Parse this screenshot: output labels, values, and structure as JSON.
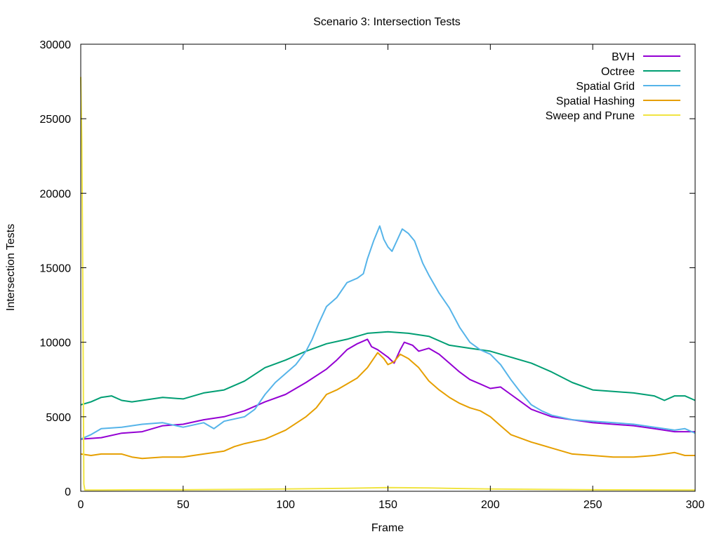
{
  "chart_data": {
    "type": "line",
    "title": "Scenario 3: Intersection Tests",
    "xlabel": "Frame",
    "ylabel": "Intersection Tests",
    "xlim": [
      0,
      300
    ],
    "ylim": [
      0,
      30000
    ],
    "xticks": [
      0,
      50,
      100,
      150,
      200,
      250,
      300
    ],
    "yticks": [
      0,
      5000,
      10000,
      15000,
      20000,
      25000,
      30000
    ],
    "legend_position": "top-right",
    "grid": false,
    "series": [
      {
        "name": "BVH",
        "color": "#9400d3",
        "points": [
          [
            0,
            3500
          ],
          [
            10,
            3600
          ],
          [
            20,
            3900
          ],
          [
            30,
            4000
          ],
          [
            40,
            4400
          ],
          [
            50,
            4500
          ],
          [
            60,
            4800
          ],
          [
            70,
            5000
          ],
          [
            80,
            5400
          ],
          [
            90,
            6000
          ],
          [
            100,
            6500
          ],
          [
            110,
            7300
          ],
          [
            120,
            8200
          ],
          [
            125,
            8800
          ],
          [
            130,
            9500
          ],
          [
            135,
            9900
          ],
          [
            140,
            10200
          ],
          [
            142,
            9700
          ],
          [
            145,
            9500
          ],
          [
            150,
            9000
          ],
          [
            153,
            8600
          ],
          [
            156,
            9500
          ],
          [
            158,
            10000
          ],
          [
            162,
            9800
          ],
          [
            165,
            9400
          ],
          [
            170,
            9600
          ],
          [
            175,
            9200
          ],
          [
            180,
            8600
          ],
          [
            185,
            8000
          ],
          [
            190,
            7500
          ],
          [
            195,
            7200
          ],
          [
            200,
            6900
          ],
          [
            205,
            7000
          ],
          [
            210,
            6500
          ],
          [
            215,
            6000
          ],
          [
            220,
            5500
          ],
          [
            230,
            5000
          ],
          [
            240,
            4800
          ],
          [
            250,
            4600
          ],
          [
            260,
            4500
          ],
          [
            270,
            4400
          ],
          [
            280,
            4200
          ],
          [
            290,
            4000
          ],
          [
            300,
            4000
          ]
        ]
      },
      {
        "name": "Octree",
        "color": "#009e73",
        "points": [
          [
            0,
            5800
          ],
          [
            5,
            6000
          ],
          [
            10,
            6300
          ],
          [
            15,
            6400
          ],
          [
            20,
            6100
          ],
          [
            25,
            6000
          ],
          [
            30,
            6100
          ],
          [
            40,
            6300
          ],
          [
            50,
            6200
          ],
          [
            60,
            6600
          ],
          [
            70,
            6800
          ],
          [
            80,
            7400
          ],
          [
            90,
            8300
          ],
          [
            100,
            8800
          ],
          [
            110,
            9400
          ],
          [
            120,
            9900
          ],
          [
            130,
            10200
          ],
          [
            140,
            10600
          ],
          [
            150,
            10700
          ],
          [
            160,
            10600
          ],
          [
            170,
            10400
          ],
          [
            180,
            9800
          ],
          [
            190,
            9600
          ],
          [
            200,
            9400
          ],
          [
            210,
            9000
          ],
          [
            220,
            8600
          ],
          [
            230,
            8000
          ],
          [
            240,
            7300
          ],
          [
            250,
            6800
          ],
          [
            260,
            6700
          ],
          [
            270,
            6600
          ],
          [
            280,
            6400
          ],
          [
            285,
            6100
          ],
          [
            290,
            6400
          ],
          [
            295,
            6400
          ],
          [
            300,
            6100
          ]
        ]
      },
      {
        "name": "Spatial Grid",
        "color": "#56b4e9",
        "points": [
          [
            0,
            3500
          ],
          [
            5,
            3800
          ],
          [
            10,
            4200
          ],
          [
            20,
            4300
          ],
          [
            30,
            4500
          ],
          [
            40,
            4600
          ],
          [
            50,
            4300
          ],
          [
            60,
            4600
          ],
          [
            65,
            4200
          ],
          [
            70,
            4700
          ],
          [
            80,
            5000
          ],
          [
            85,
            5500
          ],
          [
            90,
            6500
          ],
          [
            95,
            7300
          ],
          [
            100,
            7900
          ],
          [
            105,
            8500
          ],
          [
            110,
            9400
          ],
          [
            113,
            10200
          ],
          [
            116,
            11200
          ],
          [
            120,
            12400
          ],
          [
            125,
            13000
          ],
          [
            130,
            14000
          ],
          [
            135,
            14300
          ],
          [
            138,
            14600
          ],
          [
            140,
            15600
          ],
          [
            143,
            16800
          ],
          [
            146,
            17800
          ],
          [
            148,
            16900
          ],
          [
            150,
            16400
          ],
          [
            152,
            16100
          ],
          [
            155,
            17000
          ],
          [
            157,
            17600
          ],
          [
            160,
            17300
          ],
          [
            163,
            16800
          ],
          [
            167,
            15300
          ],
          [
            170,
            14500
          ],
          [
            175,
            13300
          ],
          [
            180,
            12300
          ],
          [
            185,
            11000
          ],
          [
            190,
            10000
          ],
          [
            195,
            9500
          ],
          [
            200,
            9200
          ],
          [
            205,
            8500
          ],
          [
            210,
            7500
          ],
          [
            215,
            6600
          ],
          [
            220,
            5800
          ],
          [
            225,
            5400
          ],
          [
            230,
            5100
          ],
          [
            240,
            4800
          ],
          [
            250,
            4700
          ],
          [
            260,
            4600
          ],
          [
            270,
            4500
          ],
          [
            280,
            4300
          ],
          [
            290,
            4100
          ],
          [
            295,
            4200
          ],
          [
            300,
            3900
          ]
        ]
      },
      {
        "name": "Spatial Hashing",
        "color": "#e69f00",
        "points": [
          [
            0,
            2500
          ],
          [
            5,
            2400
          ],
          [
            10,
            2500
          ],
          [
            20,
            2500
          ],
          [
            25,
            2300
          ],
          [
            30,
            2200
          ],
          [
            40,
            2300
          ],
          [
            50,
            2300
          ],
          [
            55,
            2400
          ],
          [
            60,
            2500
          ],
          [
            70,
            2700
          ],
          [
            75,
            3000
          ],
          [
            80,
            3200
          ],
          [
            90,
            3500
          ],
          [
            100,
            4100
          ],
          [
            110,
            5000
          ],
          [
            115,
            5600
          ],
          [
            120,
            6500
          ],
          [
            125,
            6800
          ],
          [
            130,
            7200
          ],
          [
            135,
            7600
          ],
          [
            140,
            8300
          ],
          [
            145,
            9300
          ],
          [
            148,
            8900
          ],
          [
            150,
            8500
          ],
          [
            153,
            8700
          ],
          [
            156,
            9200
          ],
          [
            160,
            8900
          ],
          [
            165,
            8300
          ],
          [
            170,
            7400
          ],
          [
            175,
            6800
          ],
          [
            180,
            6300
          ],
          [
            185,
            5900
          ],
          [
            190,
            5600
          ],
          [
            195,
            5400
          ],
          [
            200,
            5000
          ],
          [
            205,
            4400
          ],
          [
            210,
            3800
          ],
          [
            220,
            3300
          ],
          [
            230,
            2900
          ],
          [
            240,
            2500
          ],
          [
            250,
            2400
          ],
          [
            260,
            2300
          ],
          [
            270,
            2300
          ],
          [
            280,
            2400
          ],
          [
            290,
            2600
          ],
          [
            295,
            2400
          ],
          [
            300,
            2400
          ]
        ]
      },
      {
        "name": "Sweep and Prune",
        "color": "#f0e442",
        "points": [
          [
            0,
            27800
          ],
          [
            0.5,
            23500
          ],
          [
            1,
            14000
          ],
          [
            1.5,
            500
          ],
          [
            2,
            80
          ],
          [
            10,
            80
          ],
          [
            30,
            100
          ],
          [
            50,
            100
          ],
          [
            100,
            150
          ],
          [
            130,
            200
          ],
          [
            150,
            250
          ],
          [
            170,
            220
          ],
          [
            200,
            150
          ],
          [
            250,
            100
          ],
          [
            300,
            80
          ]
        ]
      }
    ]
  }
}
